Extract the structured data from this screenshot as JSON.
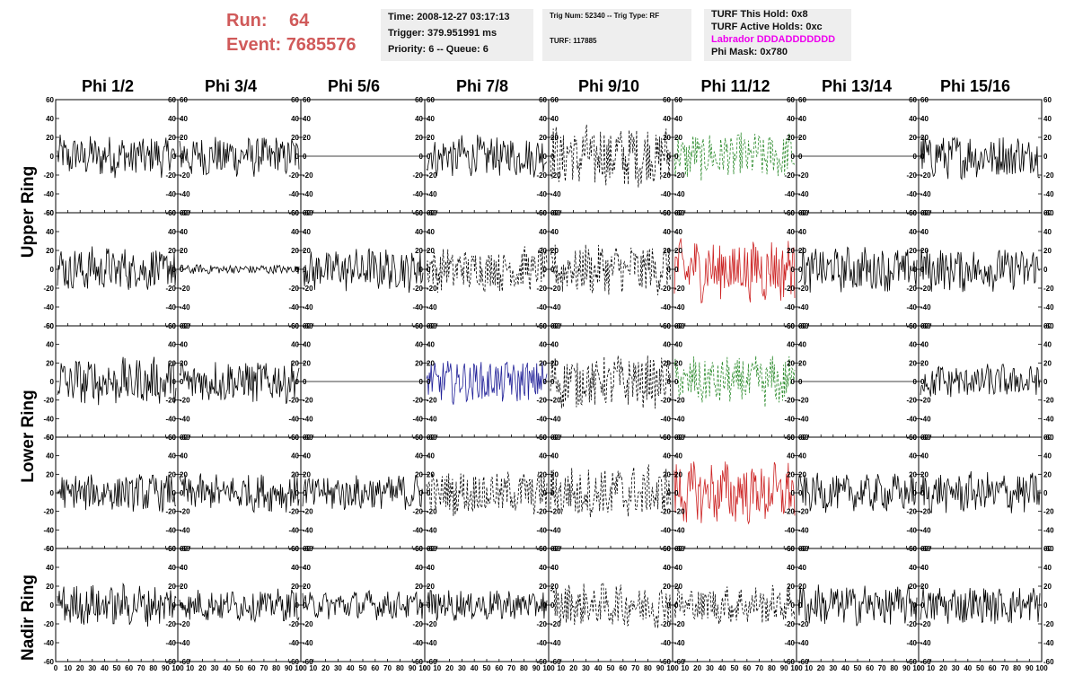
{
  "run_info": {
    "run_label": "Run:",
    "run_value": "64",
    "event_label": "Event:",
    "event_value": "7685576"
  },
  "time_box": {
    "time": "Time: 2008-12-27 03:17:13",
    "trigger": "Trigger: 379.951991 ms",
    "priority": "Priority: 6 -- Queue: 6"
  },
  "trig_box": {
    "trig": "Trig Num: 52340 -- Trig Type: RF",
    "turf": "TURF: 117885"
  },
  "turf_box": {
    "this_hold": "TURF This Hold: 0x8",
    "active_holds": "TURF Active Holds: 0xc",
    "labrador": "Labrador DDDADDDDDDD",
    "phi_mask": "Phi Mask: 0x780"
  },
  "columns": [
    "Phi 1/2",
    "Phi 3/4",
    "Phi 5/6",
    "Phi 7/8",
    "Phi 9/10",
    "Phi 11/12",
    "Phi 13/14",
    "Phi 15/16"
  ],
  "row_labels": [
    {
      "label": "Upper Ring"
    },
    {
      "label": "Lower Ring"
    },
    {
      "label": "Nadir Ring"
    }
  ],
  "y_axis": {
    "min": -60,
    "max": 60,
    "ticks": [
      "60",
      "40",
      "20",
      "0",
      "-20",
      "-40",
      "-60"
    ]
  },
  "x_axis": {
    "min": 0,
    "max": 100,
    "ticks": [
      "0",
      "10",
      "20",
      "30",
      "40",
      "50",
      "60",
      "70",
      "80",
      "90",
      "100"
    ]
  },
  "colors": {
    "run_text": "#d05a5a",
    "labrador_text": "#ee00ee",
    "trace_default": "#000000",
    "trace_red": "#cc2222",
    "trace_green": "#2a8a2a",
    "trace_blue": "#222299",
    "info_box_bg": "#eeeeee"
  },
  "panels": [
    [
      {
        "style": "solid",
        "color": "black",
        "amp": 13
      },
      {
        "style": "solid",
        "color": "black",
        "amp": 13
      },
      {
        "style": "flat",
        "color": "black",
        "amp": 0
      },
      {
        "style": "solid",
        "color": "black",
        "amp": 13
      },
      {
        "style": "dashed",
        "color": "black",
        "amp": 20
      },
      {
        "style": "dashed",
        "color": "green",
        "amp": 15
      },
      {
        "style": "flat",
        "color": "black",
        "amp": 0
      },
      {
        "style": "solid",
        "color": "black",
        "amp": 14
      }
    ],
    [
      {
        "style": "solid",
        "color": "black",
        "amp": 14
      },
      {
        "style": "solid",
        "color": "black",
        "amp": 3
      },
      {
        "style": "solid",
        "color": "black",
        "amp": 14
      },
      {
        "style": "dashed",
        "color": "black",
        "amp": 14
      },
      {
        "style": "dashed",
        "color": "black",
        "amp": 16
      },
      {
        "style": "solid",
        "color": "red",
        "amp": 20
      },
      {
        "style": "solid",
        "color": "black",
        "amp": 14
      },
      {
        "style": "solid",
        "color": "black",
        "amp": 14
      }
    ],
    [
      {
        "style": "solid",
        "color": "black",
        "amp": 15
      },
      {
        "style": "solid",
        "color": "black",
        "amp": 14
      },
      {
        "style": "flat",
        "color": "black",
        "amp": 0
      },
      {
        "style": "solid",
        "color": "blue",
        "amp": 14
      },
      {
        "style": "dashed",
        "color": "black",
        "amp": 17
      },
      {
        "style": "dashed",
        "color": "green",
        "amp": 16
      },
      {
        "style": "flat",
        "color": "black",
        "amp": 0
      },
      {
        "style": "solid",
        "color": "black",
        "amp": 11
      }
    ],
    [
      {
        "style": "solid",
        "color": "black",
        "amp": 12
      },
      {
        "style": "solid",
        "color": "black",
        "amp": 12
      },
      {
        "style": "solid",
        "color": "black",
        "amp": 12
      },
      {
        "style": "dashed",
        "color": "black",
        "amp": 14
      },
      {
        "style": "dashed",
        "color": "black",
        "amp": 17
      },
      {
        "style": "solid",
        "color": "red",
        "amp": 20
      },
      {
        "style": "solid",
        "color": "black",
        "amp": 12
      },
      {
        "style": "solid",
        "color": "black",
        "amp": 13
      }
    ],
    [
      {
        "style": "solid",
        "color": "black",
        "amp": 13
      },
      {
        "style": "solid",
        "color": "black",
        "amp": 10
      },
      {
        "style": "solid",
        "color": "black",
        "amp": 9
      },
      {
        "style": "solid",
        "color": "black",
        "amp": 10
      },
      {
        "style": "dashed",
        "color": "black",
        "amp": 14
      },
      {
        "style": "dashed",
        "color": "black",
        "amp": 12
      },
      {
        "style": "solid",
        "color": "black",
        "amp": 13
      },
      {
        "style": "solid",
        "color": "black",
        "amp": 12
      }
    ]
  ]
}
